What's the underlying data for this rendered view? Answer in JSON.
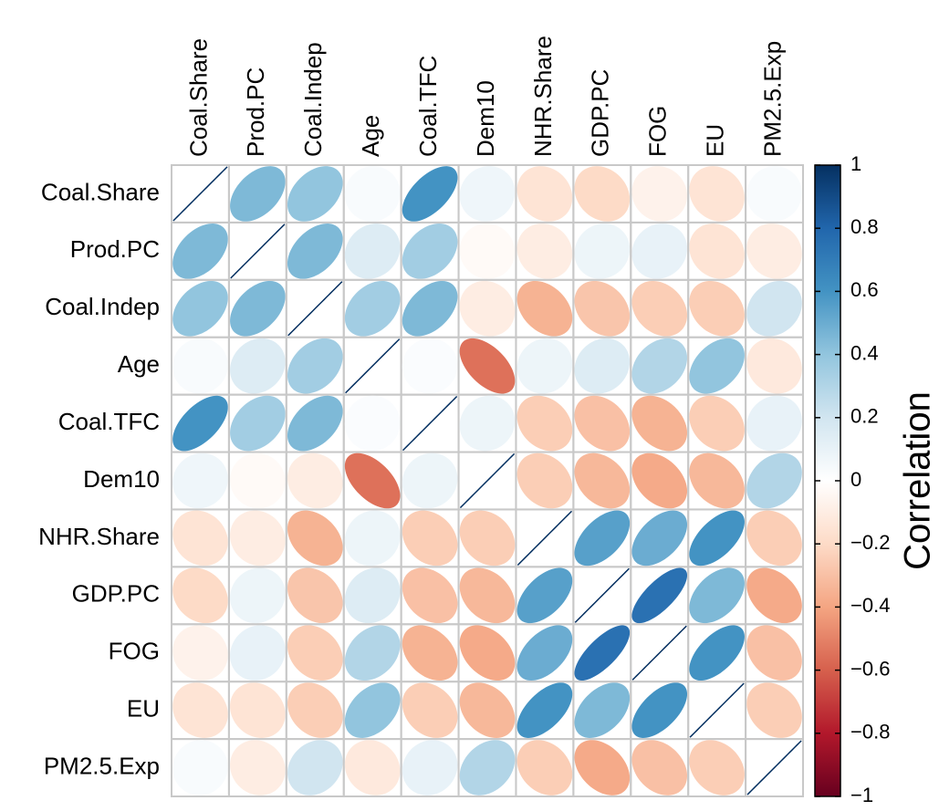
{
  "chart_data": {
    "type": "correlation",
    "variables": [
      "Coal.Share",
      "Prod.PC",
      "Coal.Indep",
      "Age",
      "Coal.TFC",
      "Dem10",
      "NHR.Share",
      "GDP.PC",
      "FOG",
      "EU",
      "PM2.5.Exp"
    ],
    "matrix": [
      [
        1,
        0.45,
        0.4,
        0.03,
        0.6,
        0.07,
        -0.15,
        -0.2,
        -0.07,
        -0.15,
        0.03
      ],
      [
        0.45,
        1,
        0.45,
        0.15,
        0.35,
        -0.03,
        -0.1,
        0.08,
        0.1,
        -0.15,
        -0.1
      ],
      [
        0.4,
        0.45,
        1,
        0.35,
        0.45,
        -0.1,
        -0.35,
        -0.28,
        -0.25,
        -0.25,
        0.2
      ],
      [
        0.03,
        0.15,
        0.35,
        1,
        0.02,
        -0.55,
        0.08,
        0.15,
        0.3,
        0.4,
        -0.12
      ],
      [
        0.6,
        0.35,
        0.45,
        0.02,
        1,
        0.08,
        -0.25,
        -0.3,
        -0.35,
        -0.25,
        0.1
      ],
      [
        0.07,
        -0.03,
        -0.1,
        -0.55,
        0.08,
        1,
        -0.25,
        -0.33,
        -0.38,
        -0.33,
        0.3
      ],
      [
        -0.15,
        -0.1,
        -0.35,
        0.08,
        -0.25,
        -0.25,
        1,
        0.55,
        0.5,
        0.6,
        -0.25
      ],
      [
        -0.2,
        0.08,
        -0.28,
        0.15,
        -0.3,
        -0.33,
        0.55,
        1,
        0.75,
        0.45,
        -0.38
      ],
      [
        -0.07,
        0.1,
        -0.25,
        0.3,
        -0.35,
        -0.38,
        0.5,
        0.75,
        1,
        0.6,
        -0.3
      ],
      [
        -0.15,
        -0.15,
        -0.25,
        0.4,
        -0.25,
        -0.33,
        0.6,
        0.45,
        0.6,
        1,
        -0.25
      ],
      [
        0.03,
        -0.1,
        0.2,
        -0.12,
        0.1,
        0.3,
        -0.25,
        -0.38,
        -0.3,
        -0.25,
        1
      ]
    ],
    "colorbar_label": "Correlation",
    "zlim": [
      -1,
      1
    ],
    "zticks": [
      {
        "value": -1,
        "label": "−1"
      },
      {
        "value": -0.8,
        "label": "−0.8"
      },
      {
        "value": -0.6,
        "label": "−0.6"
      },
      {
        "value": -0.4,
        "label": "−0.4"
      },
      {
        "value": -0.2,
        "label": "−0.2"
      },
      0,
      0.2,
      0.4,
      0.6,
      0.8,
      1
    ],
    "colorscale": [
      "#67001F",
      "#B2182B",
      "#D6604D",
      "#F4A582",
      "#FDDBC7",
      "#FFFFFF",
      "#D1E5F0",
      "#92C5DE",
      "#4393C3",
      "#2166AC",
      "#053061"
    ],
    "grid": true
  }
}
